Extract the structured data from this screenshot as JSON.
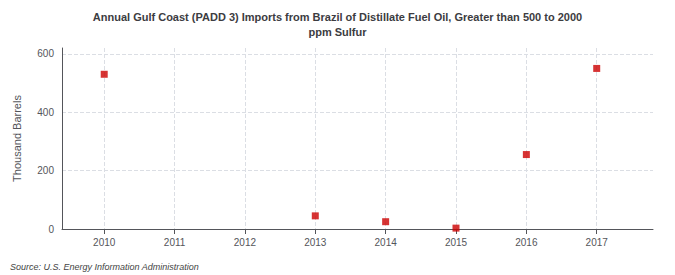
{
  "chart_data": {
    "type": "scatter",
    "title": "Annual Gulf Coast (PADD 3) Imports from Brazil of Distillate Fuel Oil, Greater than 500 to 2000\nppm Sulfur",
    "ylabel": "Thousand Barrels",
    "annotation": "Source: U.S. Energy Information Administration",
    "x": [
      2010,
      2013,
      2014,
      2015,
      2016,
      2017
    ],
    "values": [
      530,
      45,
      25,
      3,
      255,
      550
    ],
    "color": "#cc0000",
    "marker": "square",
    "xlim": [
      2009.4,
      2017.8
    ],
    "xticks": [
      2010,
      2011,
      2012,
      2013,
      2014,
      2015,
      2016,
      2017
    ],
    "ylim": [
      0,
      620
    ],
    "yticks": [
      0,
      200,
      400,
      600
    ],
    "grid": true
  }
}
